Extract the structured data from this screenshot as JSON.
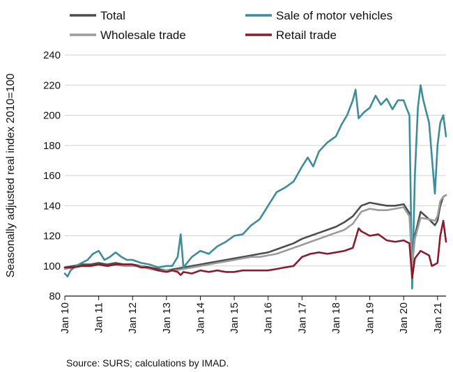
{
  "chart_data": {
    "type": "line",
    "ylabel": "Seasonally adjusted real index 2010=100",
    "ylim": [
      80,
      240
    ],
    "yticks": [
      "80",
      "100",
      "120",
      "140",
      "160",
      "180",
      "200",
      "220",
      "240"
    ],
    "x_range": [
      2010.0,
      2021.25
    ],
    "xticks": [
      {
        "x": 2010,
        "label": "Jan 10"
      },
      {
        "x": 2011,
        "label": "Jan 11"
      },
      {
        "x": 2012,
        "label": "Jan 12"
      },
      {
        "x": 2013,
        "label": "Jan 13"
      },
      {
        "x": 2014,
        "label": "Jan 14"
      },
      {
        "x": 2015,
        "label": "Jan 15"
      },
      {
        "x": 2016,
        "label": "Jan 16"
      },
      {
        "x": 2017,
        "label": "Jan 17"
      },
      {
        "x": 2018,
        "label": "Jan 18"
      },
      {
        "x": 2019,
        "label": "Jan 19"
      },
      {
        "x": 2020,
        "label": "Jan 20"
      },
      {
        "x": 2021,
        "label": "Jan 21"
      }
    ],
    "grid": "horizontal",
    "legend_position": "top",
    "source": "Source: SURS; calculations by IMAD.",
    "series": [
      {
        "name": "Total",
        "color": "#4d4d4d",
        "points": [
          [
            2010.0,
            99
          ],
          [
            2010.25,
            100
          ],
          [
            2010.5,
            101
          ],
          [
            2010.75,
            101
          ],
          [
            2011.0,
            102
          ],
          [
            2011.25,
            101
          ],
          [
            2011.5,
            102
          ],
          [
            2011.75,
            101
          ],
          [
            2012.0,
            101
          ],
          [
            2012.25,
            100
          ],
          [
            2012.5,
            99
          ],
          [
            2012.75,
            98
          ],
          [
            2013.0,
            97
          ],
          [
            2013.25,
            98
          ],
          [
            2013.5,
            99
          ],
          [
            2013.75,
            100
          ],
          [
            2014.0,
            101
          ],
          [
            2014.25,
            102
          ],
          [
            2014.5,
            103
          ],
          [
            2014.75,
            104
          ],
          [
            2015.0,
            105
          ],
          [
            2015.25,
            106
          ],
          [
            2015.5,
            107
          ],
          [
            2015.75,
            108
          ],
          [
            2016.0,
            109
          ],
          [
            2016.25,
            111
          ],
          [
            2016.5,
            113
          ],
          [
            2016.75,
            115
          ],
          [
            2017.0,
            118
          ],
          [
            2017.25,
            120
          ],
          [
            2017.5,
            122
          ],
          [
            2017.75,
            124
          ],
          [
            2018.0,
            126
          ],
          [
            2018.25,
            129
          ],
          [
            2018.5,
            133
          ],
          [
            2018.75,
            140
          ],
          [
            2019.0,
            142
          ],
          [
            2019.25,
            141
          ],
          [
            2019.5,
            140
          ],
          [
            2019.75,
            140
          ],
          [
            2020.0,
            141
          ],
          [
            2020.17,
            135
          ],
          [
            2020.25,
            103
          ],
          [
            2020.33,
            120
          ],
          [
            2020.5,
            136
          ],
          [
            2020.75,
            131
          ],
          [
            2020.92,
            127
          ],
          [
            2021.0,
            130
          ],
          [
            2021.08,
            140
          ],
          [
            2021.17,
            146
          ],
          [
            2021.25,
            147
          ]
        ]
      },
      {
        "name": "Sale of motor vehicles",
        "color": "#3c8c99",
        "points": [
          [
            2010.0,
            95
          ],
          [
            2010.08,
            93
          ],
          [
            2010.17,
            97
          ],
          [
            2010.33,
            100
          ],
          [
            2010.5,
            102
          ],
          [
            2010.67,
            104
          ],
          [
            2010.83,
            108
          ],
          [
            2011.0,
            110
          ],
          [
            2011.17,
            104
          ],
          [
            2011.33,
            106
          ],
          [
            2011.5,
            109
          ],
          [
            2011.67,
            106
          ],
          [
            2011.83,
            104
          ],
          [
            2012.0,
            104
          ],
          [
            2012.25,
            102
          ],
          [
            2012.5,
            101
          ],
          [
            2012.75,
            99
          ],
          [
            2013.0,
            100
          ],
          [
            2013.17,
            100
          ],
          [
            2013.33,
            106
          ],
          [
            2013.42,
            121
          ],
          [
            2013.5,
            99
          ],
          [
            2013.75,
            106
          ],
          [
            2014.0,
            110
          ],
          [
            2014.25,
            108
          ],
          [
            2014.5,
            113
          ],
          [
            2014.75,
            116
          ],
          [
            2015.0,
            120
          ],
          [
            2015.25,
            121
          ],
          [
            2015.5,
            127
          ],
          [
            2015.75,
            131
          ],
          [
            2016.0,
            140
          ],
          [
            2016.25,
            149
          ],
          [
            2016.5,
            152
          ],
          [
            2016.75,
            156
          ],
          [
            2017.0,
            166
          ],
          [
            2017.17,
            172
          ],
          [
            2017.33,
            166
          ],
          [
            2017.5,
            176
          ],
          [
            2017.75,
            182
          ],
          [
            2018.0,
            186
          ],
          [
            2018.17,
            194
          ],
          [
            2018.33,
            200
          ],
          [
            2018.5,
            210
          ],
          [
            2018.58,
            217
          ],
          [
            2018.67,
            198
          ],
          [
            2018.83,
            202
          ],
          [
            2019.0,
            205
          ],
          [
            2019.17,
            213
          ],
          [
            2019.33,
            207
          ],
          [
            2019.5,
            211
          ],
          [
            2019.67,
            204
          ],
          [
            2019.83,
            210
          ],
          [
            2020.0,
            210
          ],
          [
            2020.08,
            205
          ],
          [
            2020.17,
            200
          ],
          [
            2020.25,
            85
          ],
          [
            2020.33,
            160
          ],
          [
            2020.42,
            205
          ],
          [
            2020.5,
            220
          ],
          [
            2020.58,
            210
          ],
          [
            2020.75,
            195
          ],
          [
            2020.92,
            148
          ],
          [
            2021.0,
            180
          ],
          [
            2021.08,
            195
          ],
          [
            2021.17,
            200
          ],
          [
            2021.25,
            186
          ]
        ]
      },
      {
        "name": "Wholesale trade",
        "color": "#9b9b9b",
        "points": [
          [
            2010.0,
            98
          ],
          [
            2010.25,
            99
          ],
          [
            2010.5,
            100
          ],
          [
            2010.75,
            100
          ],
          [
            2011.0,
            101
          ],
          [
            2011.25,
            100
          ],
          [
            2011.5,
            101
          ],
          [
            2011.75,
            100
          ],
          [
            2012.0,
            100
          ],
          [
            2012.25,
            100
          ],
          [
            2012.5,
            98
          ],
          [
            2012.75,
            97
          ],
          [
            2013.0,
            97
          ],
          [
            2013.25,
            97
          ],
          [
            2013.5,
            98
          ],
          [
            2013.75,
            99
          ],
          [
            2014.0,
            100
          ],
          [
            2014.25,
            101
          ],
          [
            2014.5,
            102
          ],
          [
            2014.75,
            103
          ],
          [
            2015.0,
            104
          ],
          [
            2015.25,
            105
          ],
          [
            2015.5,
            106
          ],
          [
            2015.75,
            106
          ],
          [
            2016.0,
            107
          ],
          [
            2016.25,
            108
          ],
          [
            2016.5,
            110
          ],
          [
            2016.75,
            112
          ],
          [
            2017.0,
            114
          ],
          [
            2017.25,
            116
          ],
          [
            2017.5,
            118
          ],
          [
            2017.75,
            120
          ],
          [
            2018.0,
            122
          ],
          [
            2018.25,
            124
          ],
          [
            2018.5,
            128
          ],
          [
            2018.75,
            136
          ],
          [
            2019.0,
            138
          ],
          [
            2019.25,
            137
          ],
          [
            2019.5,
            137
          ],
          [
            2019.75,
            138
          ],
          [
            2020.0,
            139
          ],
          [
            2020.17,
            133
          ],
          [
            2020.25,
            100
          ],
          [
            2020.33,
            118
          ],
          [
            2020.5,
            132
          ],
          [
            2020.75,
            131
          ],
          [
            2020.92,
            130
          ],
          [
            2021.0,
            133
          ],
          [
            2021.08,
            143
          ],
          [
            2021.17,
            146
          ],
          [
            2021.25,
            147
          ]
        ]
      },
      {
        "name": "Retail trade",
        "color": "#8b1a2b",
        "points": [
          [
            2010.0,
            99
          ],
          [
            2010.25,
            99
          ],
          [
            2010.5,
            100
          ],
          [
            2010.75,
            100
          ],
          [
            2011.0,
            101
          ],
          [
            2011.25,
            100
          ],
          [
            2011.5,
            101
          ],
          [
            2011.75,
            101
          ],
          [
            2012.0,
            101
          ],
          [
            2012.25,
            99
          ],
          [
            2012.5,
            99
          ],
          [
            2012.75,
            97
          ],
          [
            2013.0,
            96
          ],
          [
            2013.17,
            97
          ],
          [
            2013.33,
            96
          ],
          [
            2013.42,
            94
          ],
          [
            2013.5,
            96
          ],
          [
            2013.75,
            95
          ],
          [
            2014.0,
            97
          ],
          [
            2014.25,
            96
          ],
          [
            2014.5,
            97
          ],
          [
            2014.75,
            96
          ],
          [
            2015.0,
            96
          ],
          [
            2015.25,
            97
          ],
          [
            2015.5,
            97
          ],
          [
            2015.75,
            97
          ],
          [
            2016.0,
            97
          ],
          [
            2016.25,
            98
          ],
          [
            2016.5,
            99
          ],
          [
            2016.75,
            100
          ],
          [
            2017.0,
            106
          ],
          [
            2017.25,
            108
          ],
          [
            2017.5,
            109
          ],
          [
            2017.75,
            108
          ],
          [
            2018.0,
            109
          ],
          [
            2018.25,
            110
          ],
          [
            2018.5,
            112
          ],
          [
            2018.67,
            125
          ],
          [
            2018.75,
            123
          ],
          [
            2019.0,
            120
          ],
          [
            2019.25,
            121
          ],
          [
            2019.5,
            117
          ],
          [
            2019.75,
            116
          ],
          [
            2020.0,
            117
          ],
          [
            2020.17,
            115
          ],
          [
            2020.25,
            92
          ],
          [
            2020.33,
            105
          ],
          [
            2020.5,
            110
          ],
          [
            2020.75,
            107
          ],
          [
            2020.83,
            100
          ],
          [
            2020.92,
            101
          ],
          [
            2021.0,
            102
          ],
          [
            2021.08,
            120
          ],
          [
            2021.17,
            130
          ],
          [
            2021.25,
            116
          ]
        ]
      }
    ]
  }
}
